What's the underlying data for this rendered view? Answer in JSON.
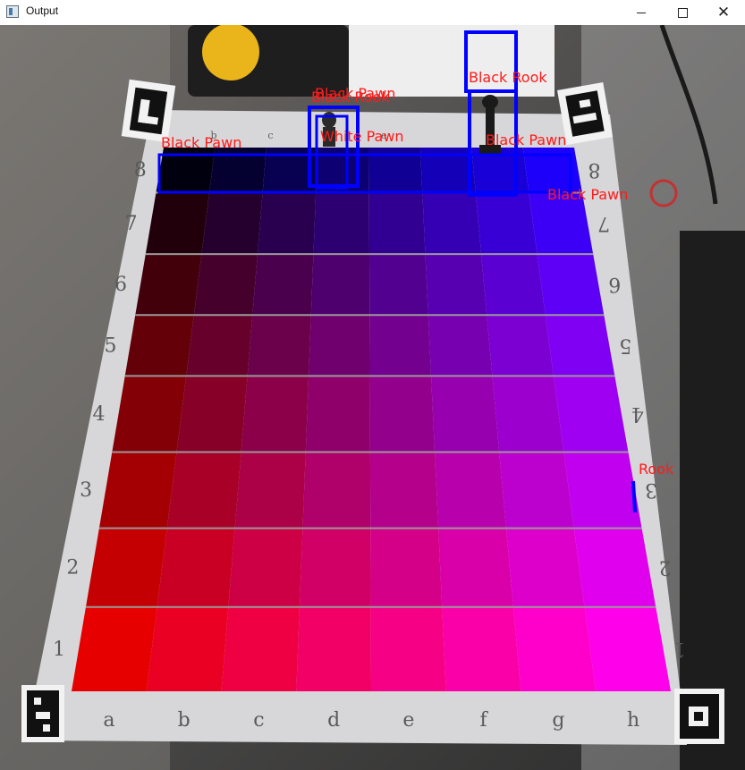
{
  "window": {
    "title": "Output",
    "controls": {
      "minimize": "minimize",
      "maximize": "maximize",
      "close": "close"
    }
  },
  "board": {
    "files": [
      "a",
      "b",
      "c",
      "d",
      "e",
      "f",
      "g",
      "h"
    ],
    "ranks_left": [
      "8",
      "7",
      "6",
      "5",
      "4",
      "3",
      "2",
      "1"
    ],
    "top_files": [
      "b",
      "c",
      "d",
      "e"
    ],
    "colors": {
      "board_frame": "#d7d7d9",
      "detection_box": "#0000ff",
      "label_text": "#ff1a1a"
    }
  },
  "detections": [
    {
      "label": "Black Pawn"
    },
    {
      "label": "Black Rook"
    },
    {
      "label": "White Pawn"
    },
    {
      "label": "Black Pawn"
    },
    {
      "label": "Black Rook"
    },
    {
      "label": "Black Pawn"
    },
    {
      "label": "Black Pawn"
    },
    {
      "label": "Rook"
    }
  ],
  "icons": [
    "window-app-icon",
    "minimize-icon",
    "maximize-icon",
    "close-icon",
    "aruco-marker-icon"
  ]
}
